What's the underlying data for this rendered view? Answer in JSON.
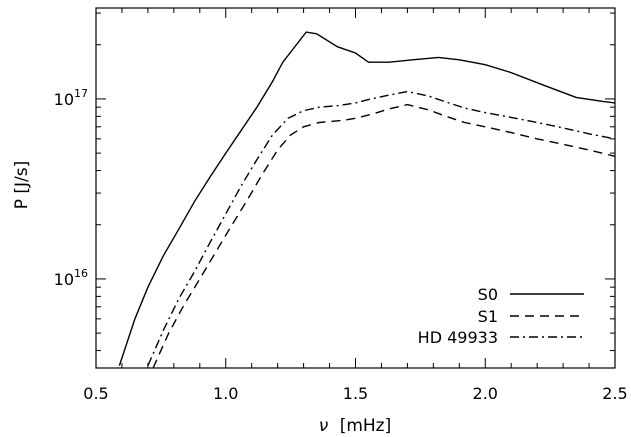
{
  "chart_data": {
    "type": "line",
    "xlabel_symbol": "ν",
    "xlabel_unit": "[mHz]",
    "ylabel": "P [J/s]",
    "xlim": [
      0.5,
      2.5
    ],
    "ylim": [
      3200000000000000.0,
      3.2e+17
    ],
    "yscale": "log",
    "grid": false,
    "legend_position": "bottom-right",
    "x_ticks": [
      "0.5",
      "1.0",
      "1.5",
      "2.0",
      "2.5"
    ],
    "y_ticks": [
      {
        "value": 1e+16,
        "base": "10",
        "exp": "16"
      },
      {
        "value": 1e+17,
        "base": "10",
        "exp": "17"
      }
    ],
    "series": [
      {
        "name": "S0",
        "style": "solid",
        "x": [
          0.59,
          0.65,
          0.7,
          0.76,
          0.82,
          0.88,
          0.94,
          1.0,
          1.06,
          1.12,
          1.18,
          1.22,
          1.31,
          1.35,
          1.43,
          1.5,
          1.55,
          1.63,
          1.72,
          1.82,
          1.9,
          2.0,
          2.1,
          2.22,
          2.35,
          2.45,
          2.5
        ],
        "y": [
          3300000000000000.0,
          6000000000000000.0,
          9000000000000000.0,
          1.35e+16,
          1.9e+16,
          2.7e+16,
          3.7e+16,
          5e+16,
          6.7e+16,
          9e+16,
          1.25e+17,
          1.6e+17,
          2.35e+17,
          2.3e+17,
          1.95e+17,
          1.8e+17,
          1.6e+17,
          1.6e+17,
          1.65e+17,
          1.7e+17,
          1.65e+17,
          1.55e+17,
          1.4e+17,
          1.2e+17,
          1.02e+17,
          9.7e+16,
          9.5e+16
        ]
      },
      {
        "name": "S1",
        "style": "dashed",
        "x": [
          0.72,
          0.78,
          0.84,
          0.9,
          0.96,
          1.02,
          1.08,
          1.14,
          1.2,
          1.25,
          1.3,
          1.36,
          1.45,
          1.5,
          1.56,
          1.63,
          1.7,
          1.78,
          1.85,
          1.92,
          2.0,
          2.1,
          2.2,
          2.3,
          2.4,
          2.5
        ],
        "y": [
          3200000000000000.0,
          5000000000000000.0,
          7200000000000000.0,
          1e+16,
          1.4e+16,
          1.95e+16,
          2.7e+16,
          3.8e+16,
          5.2e+16,
          6.3e+16,
          7e+16,
          7.4e+16,
          7.6e+16,
          7.8e+16,
          8.2e+16,
          8.8e+16,
          9.3e+16,
          8.7e+16,
          8e+16,
          7.4e+16,
          7e+16,
          6.5e+16,
          6e+16,
          5.6e+16,
          5.2e+16,
          4.8e+16
        ]
      },
      {
        "name": "HD 49933",
        "style": "dashdot",
        "x": [
          0.7,
          0.76,
          0.82,
          0.88,
          0.94,
          1.0,
          1.06,
          1.12,
          1.18,
          1.24,
          1.3,
          1.36,
          1.44,
          1.5,
          1.56,
          1.63,
          1.7,
          1.78,
          1.85,
          1.92,
          2.0,
          2.1,
          2.2,
          2.3,
          2.4,
          2.5
        ],
        "y": [
          3300000000000000.0,
          5200000000000000.0,
          7800000000000000.0,
          1.1e+16,
          1.6e+16,
          2.3e+16,
          3.3e+16,
          4.6e+16,
          6.3e+16,
          7.8e+16,
          8.6e+16,
          9e+16,
          9.2e+16,
          9.5e+16,
          1e+17,
          1.05e+17,
          1.1e+17,
          1.04e+17,
          9.6e+16,
          8.9e+16,
          8.4e+16,
          7.9e+16,
          7.4e+16,
          6.9e+16,
          6.4e+16,
          6e+16
        ]
      }
    ]
  }
}
